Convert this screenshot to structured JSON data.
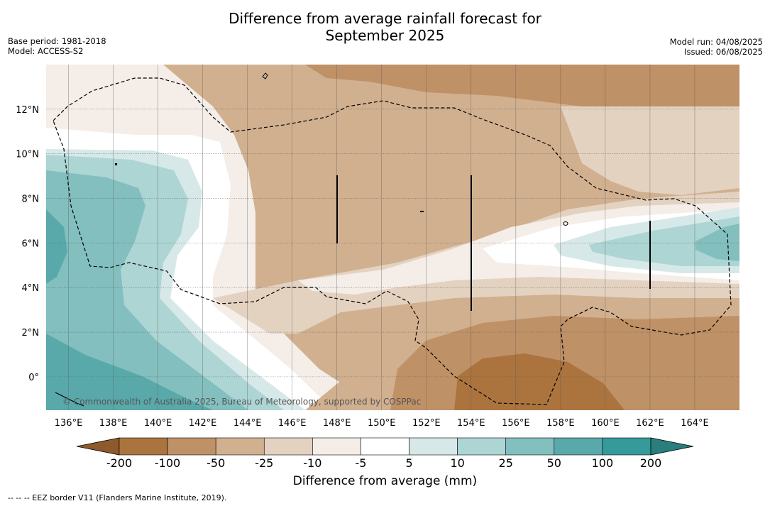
{
  "title_line1": "Difference from average rainfall forecast for",
  "title_line2": "September 2025",
  "meta_left": [
    "Base period: 1981-2018",
    "Model: ACCESS-S2"
  ],
  "meta_right": [
    "Model run: 04/08/2025",
    "Issued: 06/08/2025"
  ],
  "copyright": "© Commonwealth of Australia 2025, Bureau of Meteorology, supported by COSPPac",
  "footnote": "--  --  -- EEZ border V11 (Flanders Marine Institute, 2019).",
  "map": {
    "lon_labels": [
      "136°E",
      "138°E",
      "140°E",
      "142°E",
      "144°E",
      "146°E",
      "148°E",
      "150°E",
      "152°E",
      "154°E",
      "156°E",
      "158°E",
      "160°E",
      "162°E",
      "164°E"
    ],
    "lon_values": [
      136,
      138,
      140,
      142,
      144,
      146,
      148,
      150,
      152,
      154,
      156,
      158,
      160,
      162,
      164
    ],
    "lat_labels": [
      "12°N",
      "10°N",
      "8°N",
      "6°N",
      "4°N",
      "2°N",
      "0°"
    ],
    "lat_values": [
      12,
      10,
      8,
      6,
      4,
      2,
      0
    ],
    "lon_range": [
      135,
      166
    ],
    "lat_range": [
      -1.5,
      14
    ]
  },
  "legend": {
    "title": "Difference from average (mm)",
    "ticks": [
      "-200",
      "-100",
      "-50",
      "-25",
      "-10",
      "-5",
      "5",
      "10",
      "25",
      "50",
      "100",
      "200"
    ],
    "colors": [
      "#8e5a2c",
      "#ab743e",
      "#bf9166",
      "#d1b08f",
      "#e4d2c1",
      "#f4ede8",
      "#ffffff",
      "#d6e9e8",
      "#acd5d4",
      "#82bfbe",
      "#5aa9aa",
      "#36999a",
      "#2a7e7e"
    ]
  }
}
